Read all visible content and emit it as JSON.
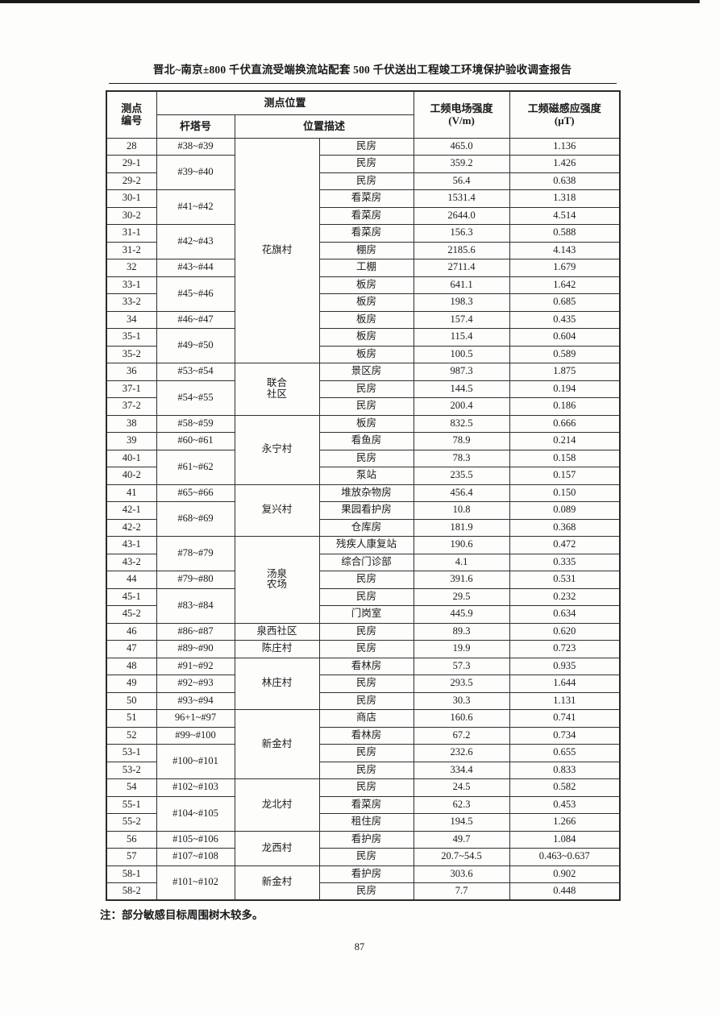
{
  "page": {
    "title": "晋北~南京±800 千伏直流受端换流站配套 500 千伏送出工程竣工环境保护验收调查报告",
    "note": "注：部分敏感目标周围树木较多。",
    "page_number": "87"
  },
  "table": {
    "header": {
      "point_id": "测点\n编号",
      "location_group": "测点位置",
      "tower": "杆塔号",
      "description": "位置描述",
      "efield_label": "工频电场强度",
      "efield_unit": "(V/m)",
      "bfield_label": "工频磁感应强度",
      "bfield_unit": "(μT)"
    },
    "rows": [
      {
        "id": "28",
        "tower": {
          "text": "#38~#39",
          "span": 1
        },
        "village": {
          "text": "花旗村",
          "span": 13
        },
        "desc": "民房",
        "e": "465.0",
        "b": "1.136"
      },
      {
        "id": "29-1",
        "tower": {
          "text": "#39~#40",
          "span": 2
        },
        "desc": "民房",
        "e": "359.2",
        "b": "1.426"
      },
      {
        "id": "29-2",
        "desc": "民房",
        "e": "56.4",
        "b": "0.638"
      },
      {
        "id": "30-1",
        "tower": {
          "text": "#41~#42",
          "span": 2
        },
        "desc": "看菜房",
        "e": "1531.4",
        "b": "1.318"
      },
      {
        "id": "30-2",
        "desc": "看菜房",
        "e": "2644.0",
        "b": "4.514"
      },
      {
        "id": "31-1",
        "tower": {
          "text": "#42~#43",
          "span": 2
        },
        "desc": "看菜房",
        "e": "156.3",
        "b": "0.588"
      },
      {
        "id": "31-2",
        "desc": "棚房",
        "e": "2185.6",
        "b": "4.143"
      },
      {
        "id": "32",
        "tower": {
          "text": "#43~#44",
          "span": 1
        },
        "desc": "工棚",
        "e": "2711.4",
        "b": "1.679"
      },
      {
        "id": "33-1",
        "tower": {
          "text": "#45~#46",
          "span": 2
        },
        "desc": "板房",
        "e": "641.1",
        "b": "1.642"
      },
      {
        "id": "33-2",
        "desc": "板房",
        "e": "198.3",
        "b": "0.685"
      },
      {
        "id": "34",
        "tower": {
          "text": "#46~#47",
          "span": 1
        },
        "desc": "板房",
        "e": "157.4",
        "b": "0.435"
      },
      {
        "id": "35-1",
        "tower": {
          "text": "#49~#50",
          "span": 2
        },
        "desc": "板房",
        "e": "115.4",
        "b": "0.604"
      },
      {
        "id": "35-2",
        "desc": "板房",
        "e": "100.5",
        "b": "0.589"
      },
      {
        "id": "36",
        "tower": {
          "text": "#53~#54",
          "span": 1
        },
        "village": {
          "text": "联合\n社区",
          "span": 3
        },
        "desc": "景区房",
        "e": "987.3",
        "b": "1.875"
      },
      {
        "id": "37-1",
        "tower": {
          "text": "#54~#55",
          "span": 2
        },
        "desc": "民房",
        "e": "144.5",
        "b": "0.194"
      },
      {
        "id": "37-2",
        "desc": "民房",
        "e": "200.4",
        "b": "0.186"
      },
      {
        "id": "38",
        "tower": {
          "text": "#58~#59",
          "span": 1
        },
        "village": {
          "text": "永宁村",
          "span": 4
        },
        "desc": "板房",
        "e": "832.5",
        "b": "0.666"
      },
      {
        "id": "39",
        "tower": {
          "text": "#60~#61",
          "span": 1
        },
        "desc": "看鱼房",
        "e": "78.9",
        "b": "0.214"
      },
      {
        "id": "40-1",
        "tower": {
          "text": "#61~#62",
          "span": 2
        },
        "desc": "民房",
        "e": "78.3",
        "b": "0.158"
      },
      {
        "id": "40-2",
        "desc": "泵站",
        "e": "235.5",
        "b": "0.157"
      },
      {
        "id": "41",
        "tower": {
          "text": "#65~#66",
          "span": 1
        },
        "village": {
          "text": "复兴村",
          "span": 3
        },
        "desc": "堆放杂物房",
        "e": "456.4",
        "b": "0.150"
      },
      {
        "id": "42-1",
        "tower": {
          "text": "#68~#69",
          "span": 2
        },
        "desc": "果园看护房",
        "e": "10.8",
        "b": "0.089"
      },
      {
        "id": "42-2",
        "desc": "仓库房",
        "e": "181.9",
        "b": "0.368"
      },
      {
        "id": "43-1",
        "tower": {
          "text": "#78~#79",
          "span": 2
        },
        "village": {
          "text": "汤泉\n农场",
          "span": 5
        },
        "desc": "残疾人康复站",
        "e": "190.6",
        "b": "0.472"
      },
      {
        "id": "43-2",
        "desc": "综合门诊部",
        "e": "4.1",
        "b": "0.335"
      },
      {
        "id": "44",
        "tower": {
          "text": "#79~#80",
          "span": 1
        },
        "desc": "民房",
        "e": "391.6",
        "b": "0.531"
      },
      {
        "id": "45-1",
        "tower": {
          "text": "#83~#84",
          "span": 2
        },
        "desc": "民房",
        "e": "29.5",
        "b": "0.232"
      },
      {
        "id": "45-2",
        "desc": "门岗室",
        "e": "445.9",
        "b": "0.634"
      },
      {
        "id": "46",
        "tower": {
          "text": "#86~#87",
          "span": 1
        },
        "village": {
          "text": "泉西社区",
          "span": 1
        },
        "desc": "民房",
        "e": "89.3",
        "b": "0.620"
      },
      {
        "id": "47",
        "tower": {
          "text": "#89~#90",
          "span": 1
        },
        "village": {
          "text": "陈庄村",
          "span": 1
        },
        "desc": "民房",
        "e": "19.9",
        "b": "0.723"
      },
      {
        "id": "48",
        "tower": {
          "text": "#91~#92",
          "span": 1
        },
        "village": {
          "text": "林庄村",
          "span": 3
        },
        "desc": "看林房",
        "e": "57.3",
        "b": "0.935"
      },
      {
        "id": "49",
        "tower": {
          "text": "#92~#93",
          "span": 1
        },
        "desc": "民房",
        "e": "293.5",
        "b": "1.644"
      },
      {
        "id": "50",
        "tower": {
          "text": "#93~#94",
          "span": 1
        },
        "desc": "民房",
        "e": "30.3",
        "b": "1.131"
      },
      {
        "id": "51",
        "tower": {
          "text": "96+1~#97",
          "span": 1
        },
        "village": {
          "text": "新金村",
          "span": 4
        },
        "desc": "商店",
        "e": "160.6",
        "b": "0.741"
      },
      {
        "id": "52",
        "tower": {
          "text": "#99~#100",
          "span": 1
        },
        "desc": "看林房",
        "e": "67.2",
        "b": "0.734"
      },
      {
        "id": "53-1",
        "tower": {
          "text": "#100~#101",
          "span": 2
        },
        "desc": "民房",
        "e": "232.6",
        "b": "0.655"
      },
      {
        "id": "53-2",
        "desc": "民房",
        "e": "334.4",
        "b": "0.833"
      },
      {
        "id": "54",
        "tower": {
          "text": "#102~#103",
          "span": 1
        },
        "village": {
          "text": "龙北村",
          "span": 3
        },
        "desc": "民房",
        "e": "24.5",
        "b": "0.582"
      },
      {
        "id": "55-1",
        "tower": {
          "text": "#104~#105",
          "span": 2
        },
        "desc": "看菜房",
        "e": "62.3",
        "b": "0.453"
      },
      {
        "id": "55-2",
        "desc": "租住房",
        "e": "194.5",
        "b": "1.266"
      },
      {
        "id": "56",
        "tower": {
          "text": "#105~#106",
          "span": 1
        },
        "village": {
          "text": "龙西村",
          "span": 2
        },
        "desc": "看护房",
        "e": "49.7",
        "b": "1.084"
      },
      {
        "id": "57",
        "tower": {
          "text": "#107~#108",
          "span": 1
        },
        "desc": "民房",
        "e": "20.7~54.5",
        "b": "0.463~0.637"
      },
      {
        "id": "58-1",
        "tower": {
          "text": "#101~#102",
          "span": 2
        },
        "village": {
          "text": "新金村",
          "span": 2
        },
        "desc": "看护房",
        "e": "303.6",
        "b": "0.902"
      },
      {
        "id": "58-2",
        "desc": "民房",
        "e": "7.7",
        "b": "0.448"
      }
    ]
  }
}
